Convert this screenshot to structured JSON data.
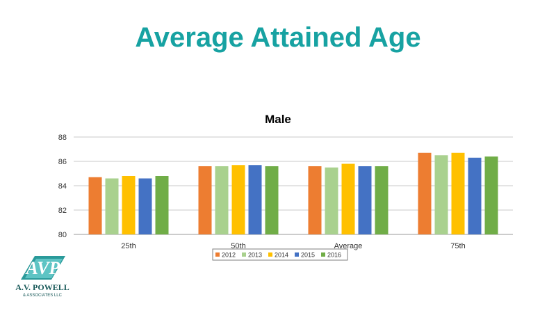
{
  "slide": {
    "title": "Average Attained Age"
  },
  "colors": {
    "title": "#17a2a2",
    "grid": "#c8c8c8",
    "axis": "#9a9a9a"
  },
  "chart_data": {
    "type": "bar",
    "title": "Male",
    "xlabel": "",
    "ylabel": "",
    "categories": [
      "25th",
      "50th",
      "Average",
      "75th"
    ],
    "series": [
      {
        "name": "2012",
        "color": "#ed7d31",
        "values": [
          84.7,
          85.6,
          85.6,
          86.7
        ]
      },
      {
        "name": "2013",
        "color": "#a9d18e",
        "values": [
          84.6,
          85.6,
          85.5,
          86.5
        ]
      },
      {
        "name": "2014",
        "color": "#ffc000",
        "values": [
          84.8,
          85.7,
          85.8,
          86.7
        ]
      },
      {
        "name": "2015",
        "color": "#4472c4",
        "values": [
          84.6,
          85.7,
          85.6,
          86.3
        ]
      },
      {
        "name": "2016",
        "color": "#70ad47",
        "values": [
          84.8,
          85.6,
          85.6,
          86.4
        ]
      }
    ],
    "ylim": [
      80,
      88
    ],
    "yticks": [
      80,
      82,
      84,
      86,
      88
    ],
    "grid": true,
    "legend_position": "bottom"
  },
  "logo": {
    "mark": "AVP",
    "name": "A.V. POWELL",
    "subname": "& ASSOCIATES LLC",
    "icon": "avp-logo-icon",
    "color": "#1a8a8a"
  }
}
